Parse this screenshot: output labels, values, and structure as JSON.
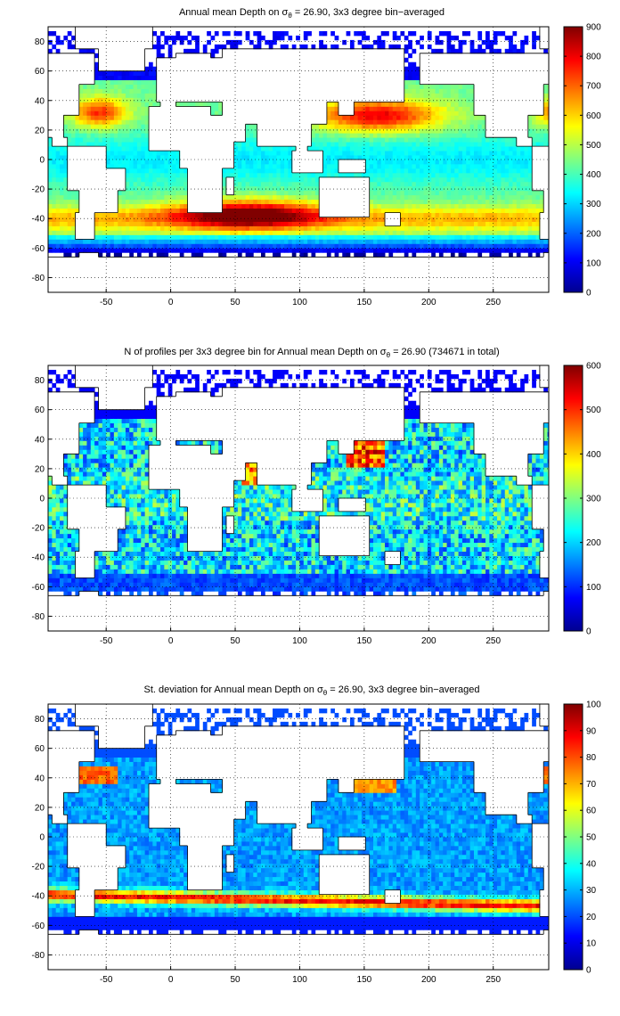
{
  "panels": [
    {
      "title_prefix": "Annual mean Depth on ",
      "title_sym": "σ",
      "title_sub": "θ",
      "title_suffix": " = 26.90, 3x3 degree bin−averaged",
      "colorbar": {
        "min": 0,
        "max": 900,
        "ticks": [
          "0",
          "100",
          "200",
          "300",
          "400",
          "500",
          "600",
          "700",
          "800",
          "900"
        ]
      }
    },
    {
      "title_prefix": "N of profiles per 3x3 degree bin for Annual mean Depth on ",
      "title_sym": "σ",
      "title_sub": "θ",
      "title_suffix": " = 26.90 (734671 in total)",
      "colorbar": {
        "min": 0,
        "max": 600,
        "ticks": [
          "0",
          "100",
          "200",
          "300",
          "400",
          "500",
          "600"
        ]
      }
    },
    {
      "title_prefix": "St. deviation for Annual mean Depth on ",
      "title_sym": "σ",
      "title_sub": "θ",
      "title_suffix": " = 26.90, 3x3 degree bin−averaged",
      "colorbar": {
        "min": 0,
        "max": 100,
        "ticks": [
          "0",
          "10",
          "20",
          "30",
          "40",
          "50",
          "60",
          "70",
          "80",
          "90",
          "100"
        ]
      }
    }
  ],
  "map_axes": {
    "x_ticks": [
      "-50",
      "0",
      "50",
      "100",
      "150",
      "200",
      "250"
    ],
    "y_ticks": [
      "80",
      "60",
      "40",
      "20",
      "0",
      "-20",
      "-40",
      "-60",
      "-80"
    ],
    "lon_range": [
      -95,
      293
    ],
    "lat_range": [
      -90,
      90
    ]
  },
  "colormap": "jet"
}
